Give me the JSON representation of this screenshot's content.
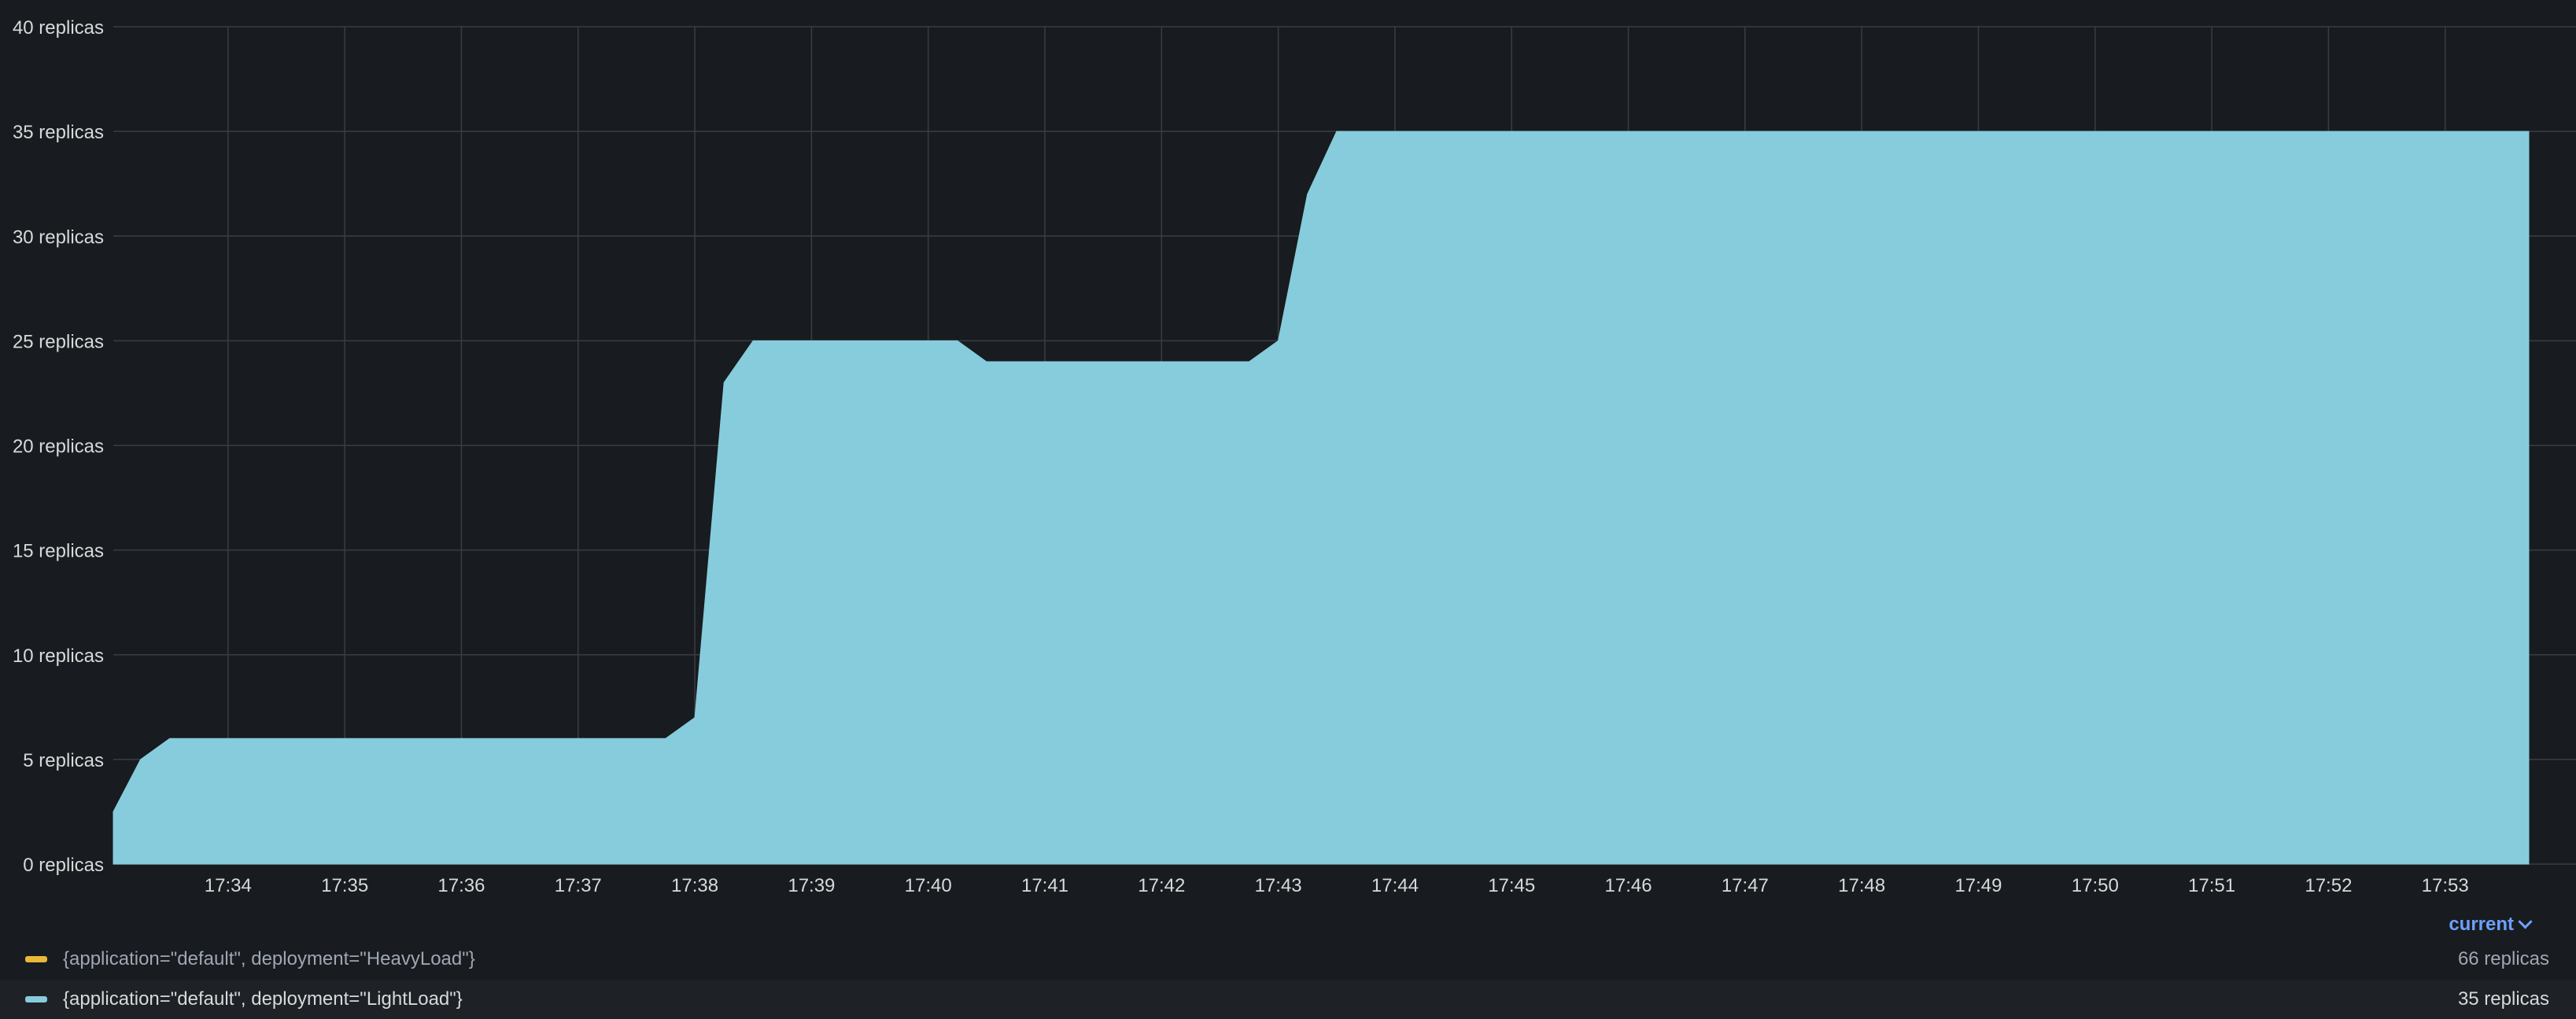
{
  "colors": {
    "background": "#181b1f",
    "grid": "#3a3d43",
    "axis_text": "#d8d9da",
    "heavy": "#eab839",
    "light": "#86ccdc"
  },
  "legend": {
    "header_label": "current",
    "items": [
      {
        "label": "{application=\"default\", deployment=\"HeavyLoad\"}",
        "value": "66 replicas",
        "color": "#eab839"
      },
      {
        "label": "{application=\"default\", deployment=\"LightLoad\"}",
        "value": "35 replicas",
        "color": "#86ccdc"
      }
    ]
  },
  "chart_data": {
    "type": "area",
    "title": "",
    "xlabel": "",
    "ylabel": "",
    "y_unit": "replicas",
    "ylim": [
      0,
      40
    ],
    "y_ticks": [
      {
        "value": 0,
        "label": "0 replicas"
      },
      {
        "value": 5,
        "label": "5 replicas"
      },
      {
        "value": 10,
        "label": "10 replicas"
      },
      {
        "value": 15,
        "label": "15 replicas"
      },
      {
        "value": 20,
        "label": "20 replicas"
      },
      {
        "value": 25,
        "label": "25 replicas"
      },
      {
        "value": 30,
        "label": "30 replicas"
      },
      {
        "value": 35,
        "label": "35 replicas"
      },
      {
        "value": 40,
        "label": "40 replicas"
      }
    ],
    "x_ticks": [
      "17:34",
      "17:35",
      "17:36",
      "17:37",
      "17:38",
      "17:39",
      "17:40",
      "17:41",
      "17:42",
      "17:43",
      "17:44",
      "17:45",
      "17:46",
      "17:47",
      "17:48",
      "17:49",
      "17:50",
      "17:51",
      "17:52",
      "17:53"
    ],
    "xlim": [
      "17:33:01",
      "17:53:43"
    ],
    "grid": true,
    "legend_position": "bottom",
    "series": [
      {
        "name": "{application=\"default\", deployment=\"LightLoad\"}",
        "color": "#86ccdc",
        "points": [
          {
            "t": "17:33:01",
            "v": 2.5
          },
          {
            "t": "17:33:15",
            "v": 5
          },
          {
            "t": "17:33:30",
            "v": 6
          },
          {
            "t": "17:37:45",
            "v": 6
          },
          {
            "t": "17:38:00",
            "v": 7
          },
          {
            "t": "17:38:15",
            "v": 23
          },
          {
            "t": "17:38:30",
            "v": 25
          },
          {
            "t": "17:40:15",
            "v": 25
          },
          {
            "t": "17:40:30",
            "v": 24
          },
          {
            "t": "17:42:45",
            "v": 24
          },
          {
            "t": "17:43:00",
            "v": 25
          },
          {
            "t": "17:43:15",
            "v": 32
          },
          {
            "t": "17:43:30",
            "v": 35
          },
          {
            "t": "17:53:43",
            "v": 35
          }
        ]
      }
    ]
  }
}
